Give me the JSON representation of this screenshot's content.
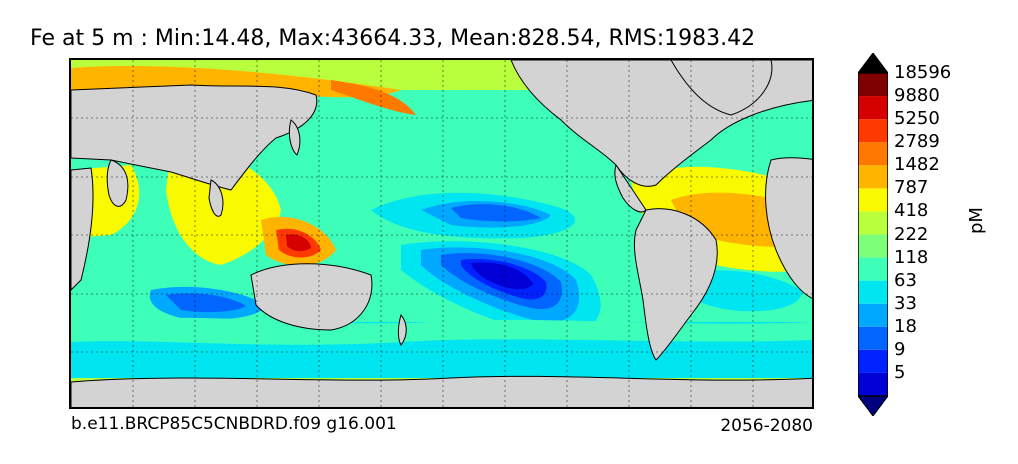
{
  "title": "Fe at 5 m : Min:14.48, Max:43664.33, Mean:828.54, RMS:1983.42",
  "footer": {
    "case": "b.e11.BRCP85C5CNBDRD.f09 g16.001",
    "period": "2056-2080"
  },
  "colorbar": {
    "units": "pM",
    "levels": [
      "5",
      "9",
      "18",
      "33",
      "63",
      "118",
      "222",
      "418",
      "787",
      "1482",
      "2789",
      "5250",
      "9880",
      "18596"
    ],
    "colors": [
      "#00007f",
      "#0000d6",
      "#0022ff",
      "#0066ff",
      "#00a8ff",
      "#00e6f0",
      "#3dffba",
      "#7dff7a",
      "#baff3d",
      "#f9fa00",
      "#ffb400",
      "#ff7800",
      "#ff3a00",
      "#d60000",
      "#7f0000"
    ]
  },
  "map": {
    "land_color": "#d3d3d3",
    "projection": "cylindrical equidistant, Pacific-centered",
    "grid": true
  }
}
